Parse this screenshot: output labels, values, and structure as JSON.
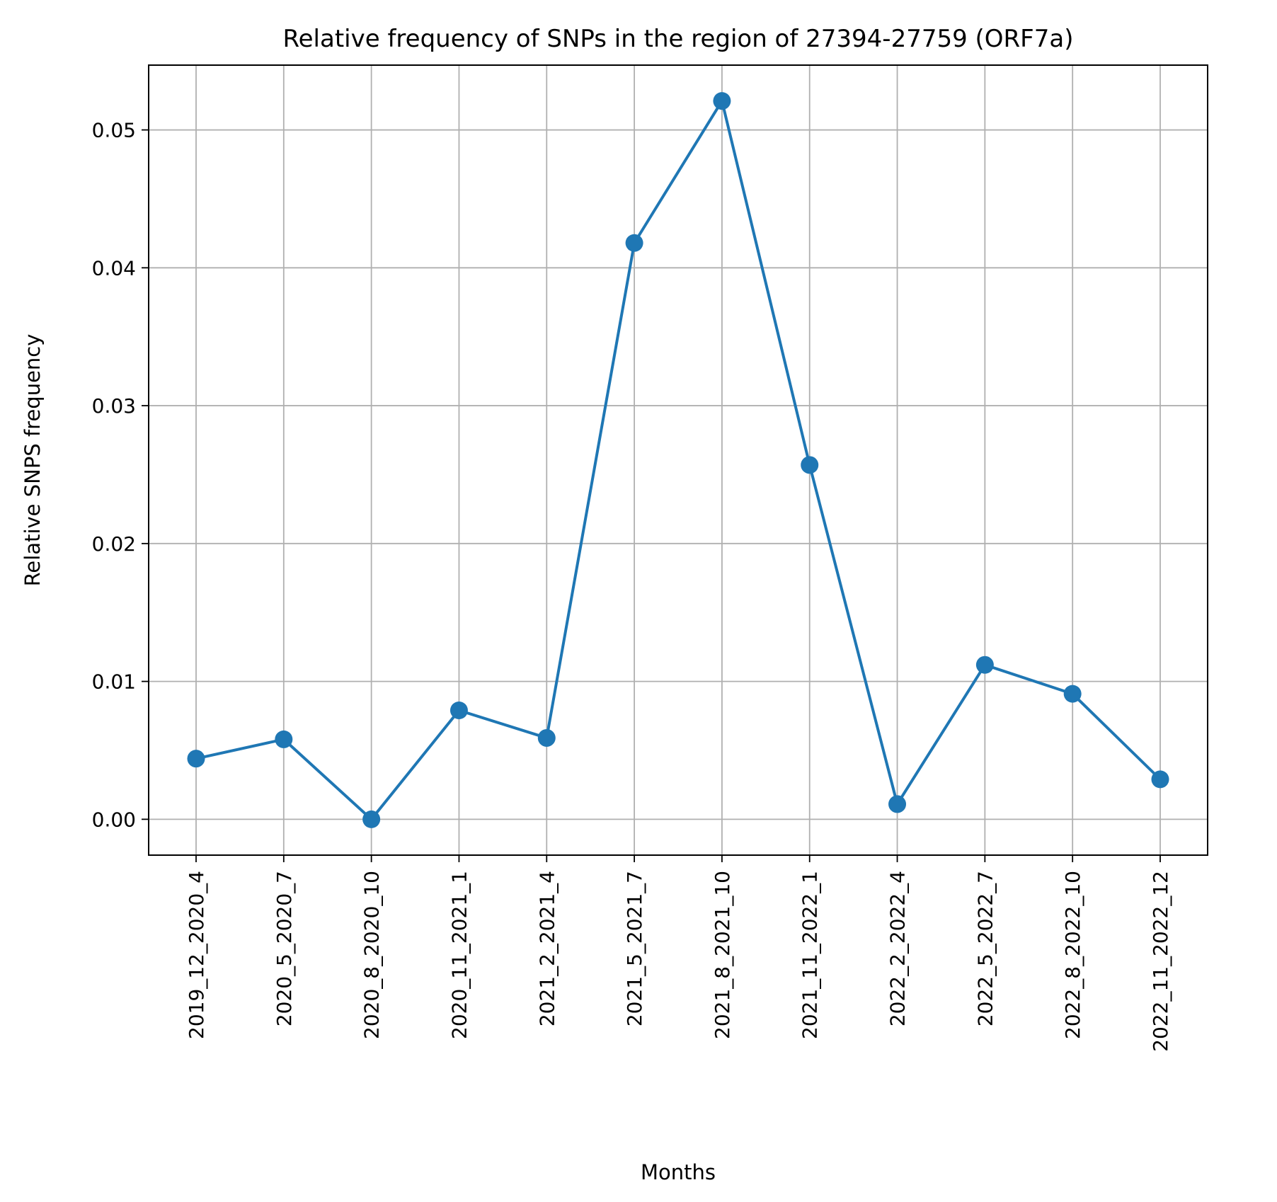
{
  "chart_data": {
    "type": "line",
    "title": "Relative frequency of SNPs in the region of 27394-27759 (ORF7a)",
    "xlabel": "Months",
    "ylabel": "Relative SNPS frequency",
    "categories": [
      "2019_12_2020_4",
      "2020_5_2020_7",
      "2020_8_2020_10",
      "2020_11_2021_1",
      "2021_2_2021_4",
      "2021_5_2021_7",
      "2021_8_2021_10",
      "2021_11_2022_1",
      "2022_2_2022_4",
      "2022_5_2022_7",
      "2022_8_2022_10",
      "2022_11_2022_12"
    ],
    "values": [
      0.0044,
      0.0058,
      0.0,
      0.0079,
      0.0059,
      0.0418,
      0.0521,
      0.0257,
      0.0011,
      0.0112,
      0.0091,
      0.0029
    ],
    "ylim": [
      -0.0026,
      0.0547
    ],
    "yticks": [
      0.0,
      0.01,
      0.02,
      0.03,
      0.04,
      0.05
    ],
    "ytick_labels": [
      "0.00",
      "0.01",
      "0.02",
      "0.03",
      "0.04",
      "0.05"
    ],
    "grid": true,
    "line_color": "#1f77b4",
    "marker": "circle"
  }
}
